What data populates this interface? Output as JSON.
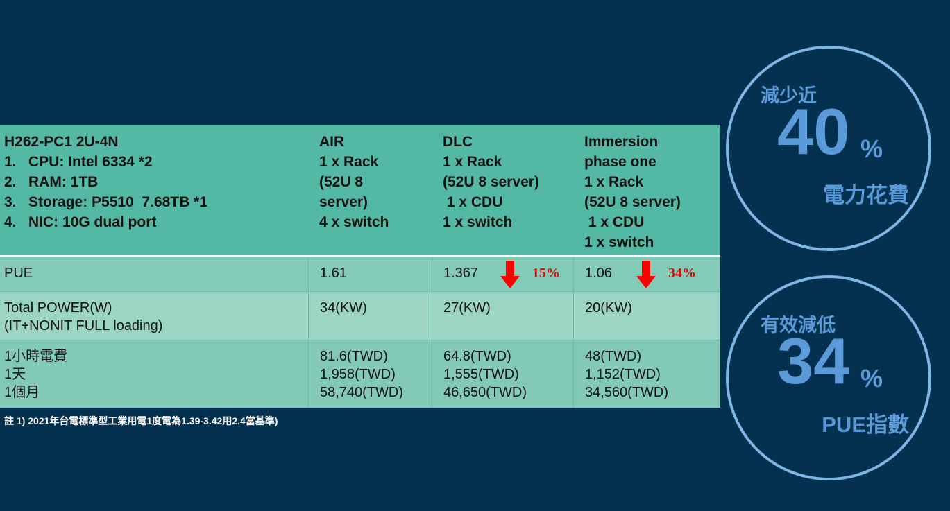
{
  "table": {
    "header": [
      [
        "H262-PC1 2U-4N",
        "1.   CPU: Intel 6334 *2",
        "2.   RAM: 1TB",
        "3.   Storage: P5510  7.68TB *1",
        "4.   NIC: 10G dual port"
      ],
      [
        "AIR",
        "1 x Rack",
        "(52U 8",
        "server)",
        "4 x switch"
      ],
      [
        "DLC",
        "1 x Rack",
        "(52U 8 server)",
        " 1 x CDU",
        "1 x switch"
      ],
      [
        "Immersion",
        "phase one",
        "1 x Rack",
        "(52U 8 server)",
        " 1 x CDU",
        "1 x switch"
      ]
    ],
    "rows": [
      [
        [
          "PUE"
        ],
        [
          "1.61"
        ],
        [
          "1.367"
        ],
        [
          "1.06"
        ]
      ],
      [
        [
          "Total POWER(W)",
          "(IT+NONIT FULL loading)"
        ],
        [
          "34(KW)"
        ],
        [
          "27(KW)"
        ],
        [
          "20(KW)"
        ]
      ],
      [
        [
          "1小時電費",
          "1天",
          "1個月"
        ],
        [
          "81.6(TWD)",
          "1,958(TWD)",
          "58,740(TWD)"
        ],
        [
          "64.8(TWD)",
          "1,555(TWD)",
          "46,650(TWD)"
        ],
        [
          "48(TWD)",
          "1,152(TWD)",
          "34,560(TWD)"
        ]
      ]
    ],
    "pue_changes": [
      "15%",
      "34%"
    ]
  },
  "footnote": "註 1) 2021年台電標準型工業用電1度電為1.39-3.42用2.4當基準)",
  "badges": [
    {
      "top": "減少近",
      "number": "40",
      "unit": "%",
      "bottom": "電力花費"
    },
    {
      "top": "有效減低",
      "number": "34",
      "unit": "%",
      "bottom": "PUE指數"
    }
  ]
}
